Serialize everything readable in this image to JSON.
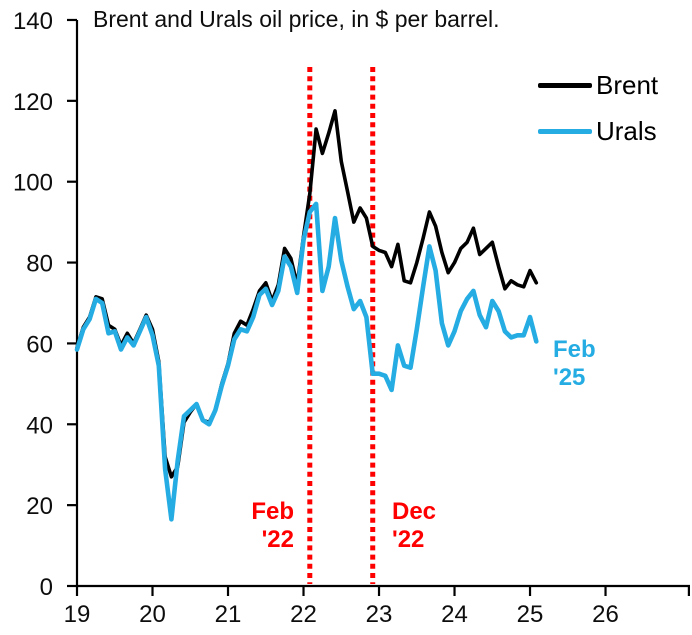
{
  "title": "Brent and Urals oil price, in $ per barrel.",
  "colors": {
    "brent": "#000000",
    "urals": "#25ACE3",
    "annotation_red": "#FF0000",
    "axis": "#000000"
  },
  "legend": {
    "items": [
      {
        "label": "Brent",
        "color": "#000000"
      },
      {
        "label": "Urals",
        "color": "#25ACE3"
      }
    ]
  },
  "annotations": {
    "feb22": {
      "line1": "Feb",
      "line2": "'22",
      "color": "#FF0000"
    },
    "dec22": {
      "line1": "Dec",
      "line2": "'22",
      "color": "#FF0000"
    },
    "feb25": {
      "line1": "Feb",
      "line2": "'25",
      "color": "#25ACE3"
    }
  },
  "chart_data": {
    "type": "line",
    "title": "Brent and Urals oil price, in $ per barrel.",
    "xlabel": "",
    "ylabel": "",
    "frequency": "monthly",
    "x_start": "2019-01",
    "x_end": "2025-02",
    "x_tick_years": [
      19,
      20,
      21,
      22,
      23,
      24,
      25,
      26
    ],
    "x_tick_labels": [
      "19",
      "20",
      "21",
      "22",
      "23",
      "24",
      "25",
      "26"
    ],
    "y_ticks": [
      0,
      20,
      40,
      60,
      80,
      100,
      120,
      140
    ],
    "y_tick_labels": [
      "0",
      "20",
      "40",
      "60",
      "80",
      "100",
      "120",
      "140"
    ],
    "ylim": [
      0,
      140
    ],
    "grid": false,
    "legend_position": "top-right",
    "series": [
      {
        "name": "Brent",
        "color": "#000000",
        "values": [
          59,
          64,
          66.5,
          71.5,
          71,
          64.5,
          63.5,
          59.5,
          62.5,
          60,
          63.5,
          67,
          63.5,
          55.5,
          32,
          27,
          29.5,
          40.5,
          43,
          45,
          41,
          40.5,
          43.5,
          50,
          55,
          62.5,
          65.5,
          64.5,
          68.5,
          73,
          75,
          70.5,
          74.5,
          83.5,
          81,
          74.5,
          86.5,
          97,
          113,
          107,
          112,
          117.5,
          105,
          97.5,
          90,
          93.5,
          91,
          84,
          83,
          82.5,
          79,
          84.5,
          75.5,
          75,
          80,
          86,
          92.5,
          89,
          82.5,
          77.5,
          80,
          83.5,
          85,
          88.5,
          82,
          83.5,
          85,
          79,
          73.5,
          75.5,
          74.5,
          74,
          78,
          75
        ]
      },
      {
        "name": "Urals",
        "color": "#25ACE3",
        "values": [
          58.5,
          63.5,
          66,
          71,
          70,
          62.5,
          63,
          58.5,
          61.5,
          59.5,
          63,
          66.5,
          62,
          54.5,
          29,
          16.5,
          31,
          42,
          43.5,
          45,
          41,
          40,
          43.5,
          49.5,
          54.5,
          61,
          63.5,
          63,
          66.5,
          72,
          73.5,
          69.5,
          73,
          81.5,
          79,
          72.5,
          85.5,
          92.5,
          94.5,
          73,
          79,
          91,
          80.5,
          74,
          68.5,
          70.5,
          66.5,
          52.5,
          52.5,
          52,
          48.5,
          59.5,
          54.5,
          54,
          63.5,
          74,
          84,
          78,
          65,
          59.5,
          63,
          68,
          71,
          73,
          67,
          64,
          70.5,
          68,
          63,
          61.5,
          62,
          62,
          66.5,
          60.5
        ]
      }
    ],
    "vlines": [
      {
        "label": "Feb '22",
        "x_month": "2022-02",
        "month_index": 37,
        "color": "#FF0000",
        "style": "dotted"
      },
      {
        "label": "Dec '22",
        "x_month": "2022-12",
        "month_index": 47,
        "color": "#FF0000",
        "style": "dotted"
      }
    ],
    "end_label": {
      "text": "Feb '25",
      "series": "Urals",
      "month_index": 73
    }
  }
}
